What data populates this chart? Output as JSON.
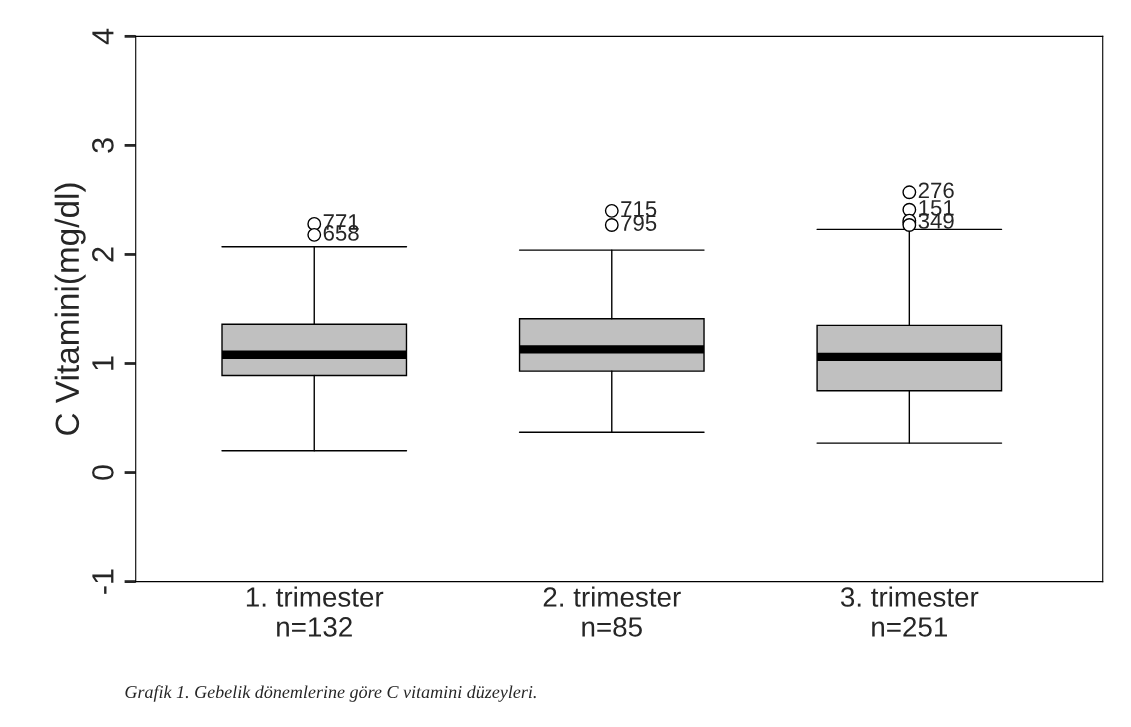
{
  "chart_data": {
    "type": "box",
    "ylabel": "C Vitamini(mg/dl)",
    "categories": [
      "1. trimester\nn=132",
      "2. trimester\nn=85",
      "3. trimester\nn=251"
    ],
    "color": "#c0c0c0",
    "ylim": [
      -1,
      4
    ],
    "yticks": [
      -1,
      0,
      1,
      2,
      3,
      4
    ],
    "grid": false,
    "boxes": [
      {
        "low": 0.2,
        "q1": 0.89,
        "median": 1.08,
        "q3": 1.36,
        "high": 2.07,
        "outliers": [
          2.28,
          2.18
        ]
      },
      {
        "low": 0.37,
        "q1": 0.93,
        "median": 1.13,
        "q3": 1.41,
        "high": 2.04,
        "outliers": [
          2.4,
          2.27
        ]
      },
      {
        "low": 0.27,
        "q1": 0.75,
        "median": 1.06,
        "q3": 1.35,
        "high": 2.23,
        "outliers": [
          2.57,
          2.41,
          2.29,
          2.31,
          2.27
        ]
      }
    ],
    "annotations": [
      "771",
      "658",
      "715",
      "795",
      "276",
      "151",
      "349",
      "Grafik 1. Gebelik dönemlerine göre C vitamini düzeyleri."
    ]
  }
}
